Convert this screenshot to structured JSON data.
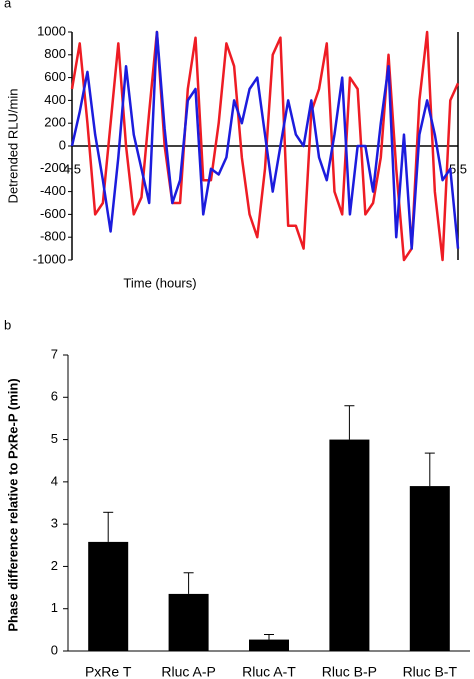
{
  "chart_data": [
    {
      "type": "line",
      "panel_label": "a",
      "y_label": "Detrended RLU/min",
      "x_label": "Time (hours)",
      "x": [
        4.5,
        4.52,
        4.54,
        4.56,
        4.58,
        4.6,
        4.62,
        4.64,
        4.66,
        4.68,
        4.7,
        4.72,
        4.74,
        4.76,
        4.78,
        4.8,
        4.82,
        4.84,
        4.86,
        4.88,
        4.9,
        4.92,
        4.94,
        4.96,
        4.98,
        5.0,
        5.02,
        5.04,
        5.06,
        5.08,
        5.1,
        5.12,
        5.14,
        5.16,
        5.18,
        5.2,
        5.22,
        5.24,
        5.26,
        5.28,
        5.3,
        5.32,
        5.34,
        5.36,
        5.38,
        5.4,
        5.42,
        5.44,
        5.46,
        5.48,
        5.5
      ],
      "series": [
        {
          "color": "#ee1c24",
          "values": [
            500,
            900,
            200,
            -600,
            -500,
            200,
            900,
            0,
            -600,
            -450,
            300,
            1000,
            0,
            -500,
            -500,
            500,
            950,
            -300,
            -300,
            200,
            900,
            700,
            -100,
            -600,
            -800,
            -200,
            800,
            950,
            -700,
            -700,
            -900,
            300,
            500,
            900,
            -400,
            -600,
            600,
            500,
            -600,
            -500,
            -100,
            800,
            -200,
            -1000,
            -900,
            400,
            1000,
            -400,
            -1000,
            400,
            550
          ]
        },
        {
          "color": "#1c1cdd",
          "values": [
            0,
            300,
            650,
            100,
            -300,
            -750,
            -100,
            700,
            100,
            -200,
            -500,
            1000,
            150,
            -500,
            -300,
            400,
            500,
            -600,
            -200,
            -250,
            -100,
            400,
            200,
            500,
            600,
            100,
            -400,
            0,
            400,
            100,
            0,
            400,
            -100,
            -300,
            100,
            600,
            -600,
            0,
            0,
            -400,
            200,
            700,
            -800,
            100,
            -900,
            100,
            400,
            100,
            -300,
            -200,
            -900
          ]
        }
      ],
      "xlim": [
        4.5,
        5.5
      ],
      "xticks": [
        4.5,
        5.5
      ],
      "ylim": [
        -1000,
        1000
      ],
      "yticks": [
        -1000,
        -800,
        -600,
        -400,
        -200,
        0,
        200,
        400,
        600,
        800,
        1000
      ]
    },
    {
      "type": "bar",
      "panel_label": "b",
      "y_label": "Phase difference relative to PxRe-P (min)",
      "categories": [
        "PxRe T",
        "Rluc A-P",
        "Rluc A-T",
        "Rluc B-P",
        "Rluc B-T"
      ],
      "values": [
        2.58,
        1.35,
        0.27,
        5.0,
        3.9
      ],
      "errors": [
        0.7,
        0.5,
        0.12,
        0.8,
        0.78
      ],
      "color": "#000000",
      "ylim": [
        0,
        7
      ],
      "yticks": [
        0,
        1,
        2,
        3,
        4,
        5,
        6,
        7
      ]
    }
  ]
}
